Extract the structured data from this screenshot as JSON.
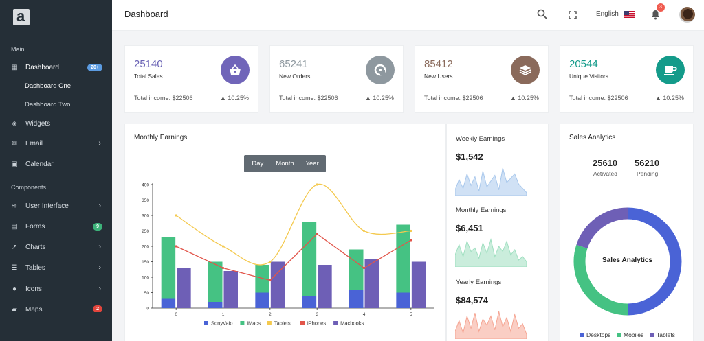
{
  "sidebar": {
    "logo": "a",
    "sections": {
      "main": "Main",
      "components": "Components"
    },
    "items": [
      {
        "label": "Dashboard",
        "icon": "dashboard-icon",
        "badge": "20+",
        "badge_color": "#5b9be0"
      },
      {
        "label": "Widgets",
        "icon": "cube-icon"
      },
      {
        "label": "Email",
        "icon": "envelope-icon"
      },
      {
        "label": "Calendar",
        "icon": "calendar-icon"
      },
      {
        "label": "User Interface",
        "icon": "layers-icon"
      },
      {
        "label": "Forms",
        "icon": "clipboard-icon",
        "badge": "9",
        "badge_color": "#3db37a"
      },
      {
        "label": "Charts",
        "icon": "chart-line-icon"
      },
      {
        "label": "Tables",
        "icon": "list-icon"
      },
      {
        "label": "Icons",
        "icon": "circle-icon"
      },
      {
        "label": "Maps",
        "icon": "map-icon",
        "badge": "2",
        "badge_color": "#e2453c"
      }
    ],
    "sub_items": [
      "Dashboard One",
      "Dashboard Two"
    ]
  },
  "topbar": {
    "title": "Dashboard",
    "language": "English",
    "notification_count": "3"
  },
  "stats": [
    {
      "value": "25140",
      "label": "Total Sales",
      "income": "Total income: $22506",
      "pct": "10.25%",
      "color": "#7065b9",
      "value_color": "#6a63b5",
      "icon": "basket-icon"
    },
    {
      "value": "65241",
      "label": "New Orders",
      "income": "Total income: $22506",
      "pct": "10.25%",
      "color": "#8e989f",
      "value_color": "#8e989f",
      "icon": "disk-icon"
    },
    {
      "value": "85412",
      "label": "New Users",
      "income": "Total income: $22506",
      "pct": "10.25%",
      "color": "#8a6a5b",
      "value_color": "#8a6a5b",
      "icon": "layers-icon"
    },
    {
      "value": "20544",
      "label": "Unique Visitors",
      "income": "Total income: $22506",
      "pct": "10.25%",
      "color": "#149b8a",
      "value_color": "#149b8a",
      "icon": "mug-icon"
    }
  ],
  "monthly": {
    "title": "Monthly Earnings",
    "ranges": [
      "Day",
      "Month",
      "Year"
    ]
  },
  "chart_data": [
    {
      "type": "bar",
      "x": [
        "0",
        "1",
        "2",
        "3",
        "4",
        "5"
      ],
      "ylim": [
        0,
        400
      ],
      "yticks": [
        "0",
        "50",
        "100",
        "150",
        "200",
        "250",
        "300",
        "350",
        "400"
      ],
      "series": [
        {
          "name": "SonyVaio",
          "kind": "bar-stack-base",
          "color": "#4a63d6",
          "values": [
            30,
            20,
            50,
            40,
            60,
            50
          ]
        },
        {
          "name": "iMacs",
          "kind": "bar-stack-top",
          "color": "#45c283",
          "values": [
            200,
            130,
            90,
            240,
            130,
            220
          ]
        },
        {
          "name": "Tablets",
          "kind": "line",
          "color": "#f4c94e",
          "values": [
            300,
            200,
            150,
            400,
            250,
            250
          ]
        },
        {
          "name": "iPhones",
          "kind": "line",
          "color": "#e2554a",
          "values": [
            200,
            130,
            90,
            240,
            130,
            220
          ]
        },
        {
          "name": "Macbooks",
          "kind": "bar",
          "color": "#6e5fb6",
          "values": [
            130,
            120,
            150,
            140,
            160,
            150
          ]
        }
      ]
    },
    {
      "type": "area",
      "title": "Weekly Earnings",
      "value": "$1,542",
      "color": "#a9c8ec",
      "values": [
        8,
        22,
        10,
        30,
        14,
        26,
        6,
        34,
        12,
        20,
        28,
        8,
        38,
        18,
        24,
        30,
        16,
        10,
        4
      ]
    },
    {
      "type": "area",
      "title": "Monthly Earnings",
      "value": "$6,451",
      "color": "#9fdfc0",
      "values": [
        14,
        26,
        12,
        30,
        18,
        22,
        10,
        28,
        16,
        32,
        12,
        24,
        18,
        30,
        14,
        20,
        8,
        12,
        6
      ]
    },
    {
      "type": "area",
      "title": "Yearly Earnings",
      "value": "$84,574",
      "color": "#f5a593",
      "values": [
        10,
        24,
        8,
        30,
        14,
        34,
        10,
        26,
        18,
        30,
        12,
        36,
        16,
        28,
        10,
        32,
        14,
        20,
        6
      ]
    },
    {
      "type": "pie",
      "title": "Sales Analytics",
      "center_label": "Sales Analytics",
      "stats": [
        {
          "value": "25610",
          "label": "Activated"
        },
        {
          "value": "56210",
          "label": "Pending"
        }
      ],
      "categories": [
        "Desktops",
        "Mobiles",
        "Tablets"
      ],
      "values": [
        50,
        30,
        20
      ],
      "colors": [
        "#4a63d6",
        "#45c283",
        "#6e5fb6"
      ]
    }
  ]
}
